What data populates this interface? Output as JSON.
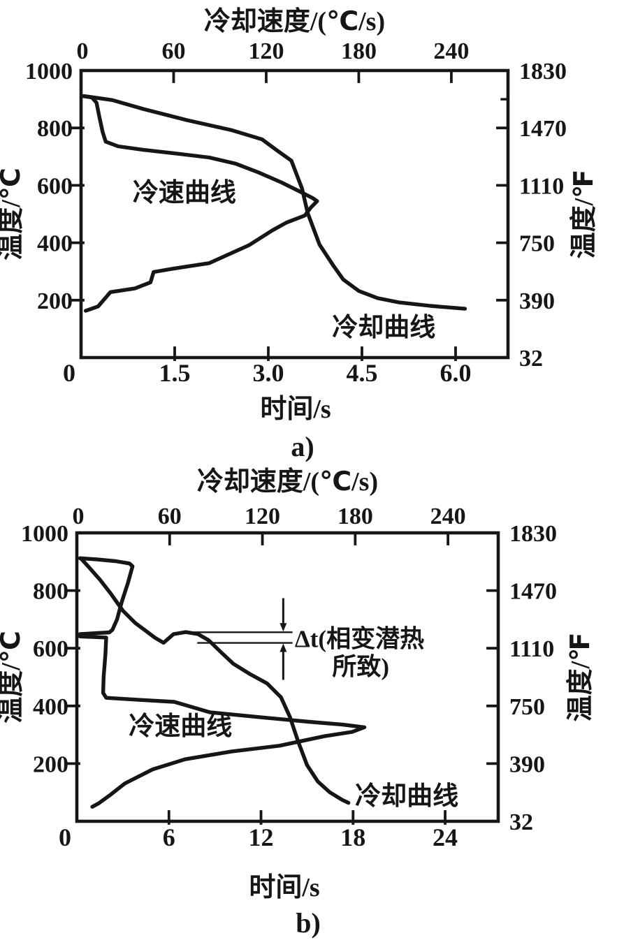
{
  "colors": {
    "ink": "#161616",
    "background": "#ffffff"
  },
  "captions": {
    "a": "a)",
    "b": "b)"
  },
  "chart_data": [
    {
      "id": "a",
      "type": "line",
      "top_axis": {
        "title": "冷却速度/(℃/s)",
        "tick_labels": [
          "0",
          "60",
          "120",
          "180",
          "240"
        ],
        "tick_values": [
          0,
          60,
          120,
          180,
          240
        ],
        "range": [
          0,
          277
        ]
      },
      "bottom_axis": {
        "title": "时间/s",
        "tick_labels": [
          "0",
          "1.5",
          "3.0",
          "4.5",
          "6.0"
        ],
        "tick_values": [
          0,
          1.5,
          3,
          4.5,
          6
        ],
        "range": [
          0,
          6.85
        ]
      },
      "left_axis": {
        "title": "温度/℃",
        "tick_labels": [
          "1000",
          "800",
          "600",
          "400",
          "200"
        ],
        "tick_values": [
          1000,
          800,
          600,
          400,
          200
        ],
        "range": [
          0,
          1000
        ]
      },
      "right_axis": {
        "title": "温度/℉",
        "tick_labels": [
          "1830",
          "1470",
          "1110",
          "750",
          "390",
          "32"
        ],
        "celsius_positions": [
          1000,
          800,
          600,
          400,
          200,
          0
        ],
        "minor_tick_celsius": [
          900
        ]
      },
      "series": [
        {
          "name": "冷却曲线",
          "kind": "cooling-curve",
          "x_axis": "time",
          "label": {
            "text": "冷却曲线",
            "x": 4.85,
            "temp": 107
          },
          "points": [
            [
              0.05,
              911
            ],
            [
              0.5,
              897
            ],
            [
              1.0,
              866
            ],
            [
              1.7,
              827
            ],
            [
              2.4,
              793
            ],
            [
              2.9,
              760
            ],
            [
              3.15,
              720
            ],
            [
              3.37,
              686
            ],
            [
              3.54,
              589
            ],
            [
              3.63,
              504
            ],
            [
              3.82,
              394
            ],
            [
              4.04,
              321
            ],
            [
              4.2,
              272
            ],
            [
              4.45,
              232
            ],
            [
              4.75,
              207
            ],
            [
              5.1,
              192
            ],
            [
              5.6,
              180
            ],
            [
              6.15,
              170
            ]
          ]
        },
        {
          "name": "冷速曲线",
          "kind": "cooling-rate-curve",
          "x_axis": "rate",
          "label": {
            "text": "冷速曲线",
            "x": 67,
            "temp": 577
          },
          "points": [
            [
              1,
              911
            ],
            [
              7,
              906
            ],
            [
              10,
              888
            ],
            [
              12,
              835
            ],
            [
              14,
              786
            ],
            [
              16,
              752
            ],
            [
              24,
              736
            ],
            [
              40,
              724
            ],
            [
              60,
              712
            ],
            [
              83,
              697
            ],
            [
              100,
              676
            ],
            [
              115,
              645
            ],
            [
              130,
              610
            ],
            [
              142,
              578
            ],
            [
              150,
              556
            ],
            [
              153,
              545
            ],
            [
              149,
              523
            ],
            [
              145,
              495
            ],
            [
              133,
              470
            ],
            [
              124,
              443
            ],
            [
              109,
              392
            ],
            [
              83,
              329
            ],
            [
              60,
              310
            ],
            [
              47,
              298
            ],
            [
              45,
              262
            ],
            [
              35,
              241
            ],
            [
              19,
              228
            ],
            [
              16,
              209
            ],
            [
              11,
              178
            ],
            [
              3,
              163
            ]
          ]
        }
      ]
    },
    {
      "id": "b",
      "type": "line",
      "top_axis": {
        "title": "冷却速度/(℃/s)",
        "tick_labels": [
          "0",
          "60",
          "120",
          "180",
          "240"
        ],
        "tick_values": [
          0,
          60,
          120,
          180,
          240
        ],
        "range": [
          0,
          272
        ]
      },
      "bottom_axis": {
        "title": "时间/s",
        "tick_labels": [
          "0",
          "6",
          "12",
          "18",
          "24"
        ],
        "tick_values": [
          0,
          6,
          12,
          18,
          24
        ],
        "range": [
          0,
          27.4
        ]
      },
      "left_axis": {
        "title": "温度/℃",
        "tick_labels": [
          "1000",
          "800",
          "600",
          "400",
          "200"
        ],
        "tick_values": [
          1000,
          800,
          600,
          400,
          200
        ],
        "range": [
          0,
          1000
        ]
      },
      "right_axis": {
        "title": "温度/℉",
        "tick_labels": [
          "1830",
          "1470",
          "1110",
          "750",
          "390",
          "32"
        ],
        "celsius_positions": [
          1000,
          800,
          600,
          400,
          200,
          0
        ],
        "minor_tick_celsius": []
      },
      "series": [
        {
          "name": "冷却曲线",
          "kind": "cooling-curve",
          "x_axis": "time",
          "label": {
            "text": "冷却曲线",
            "x": 21.5,
            "temp": 90
          },
          "points": [
            [
              0.25,
              912
            ],
            [
              0.8,
              880
            ],
            [
              1.5,
              838
            ],
            [
              2.2,
              790
            ],
            [
              3.0,
              730
            ],
            [
              3.8,
              688
            ],
            [
              4.5,
              660
            ],
            [
              5.1,
              636
            ],
            [
              5.65,
              619
            ],
            [
              6.3,
              649
            ],
            [
              7.1,
              656
            ],
            [
              7.9,
              649
            ],
            [
              8.6,
              627
            ],
            [
              9.4,
              586
            ],
            [
              10.2,
              546
            ],
            [
              11.3,
              510
            ],
            [
              12.4,
              478
            ],
            [
              13.3,
              430
            ],
            [
              13.9,
              360
            ],
            [
              14.4,
              280
            ],
            [
              15.0,
              195
            ],
            [
              15.7,
              138
            ],
            [
              16.5,
              100
            ],
            [
              17.3,
              74
            ],
            [
              17.7,
              64
            ]
          ]
        },
        {
          "name": "冷速曲线",
          "kind": "cooling-rate-curve",
          "x_axis": "rate",
          "label": {
            "text": "冷速曲线",
            "x": 67,
            "temp": 332
          },
          "points": [
            [
              2,
              912
            ],
            [
              13,
              908
            ],
            [
              25,
              902
            ],
            [
              34,
              894
            ],
            [
              36,
              884
            ],
            [
              33,
              826
            ],
            [
              29,
              760
            ],
            [
              26,
              700
            ],
            [
              23,
              664
            ],
            [
              21,
              655
            ],
            [
              2,
              649
            ],
            [
              2,
              641
            ],
            [
              19,
              637
            ],
            [
              18.5,
              580
            ],
            [
              17.3,
              500
            ],
            [
              17,
              445
            ],
            [
              19,
              428
            ],
            [
              40,
              421
            ],
            [
              63,
              414
            ],
            [
              86,
              378
            ],
            [
              120,
              360
            ],
            [
              150,
              345
            ],
            [
              172,
              335
            ],
            [
              186,
              326
            ],
            [
              178,
              310
            ],
            [
              160,
              295
            ],
            [
              131,
              262
            ],
            [
              100,
              242
            ],
            [
              70,
              215
            ],
            [
              49,
              180
            ],
            [
              31,
              131
            ],
            [
              21,
              89
            ],
            [
              14,
              62
            ],
            [
              10,
              50
            ]
          ]
        }
      ],
      "annotation": {
        "label_line1": "Δt(相变潜热",
        "label_line2": "所致)",
        "lines": [
          {
            "temp": 655.5,
            "t_start": 7.3,
            "t_end": 14.0
          },
          {
            "temp": 618.5,
            "t_start": 7.9,
            "t_end": 14.0
          }
        ],
        "arrow_t": 13.45,
        "arrow_upper_from_temp": 770,
        "arrow_lower_from_temp": 494,
        "text1_pos": {
          "t": 14.2,
          "temp": 633
        },
        "text2_pos": {
          "t": 18.5,
          "temp": 536
        }
      }
    }
  ]
}
